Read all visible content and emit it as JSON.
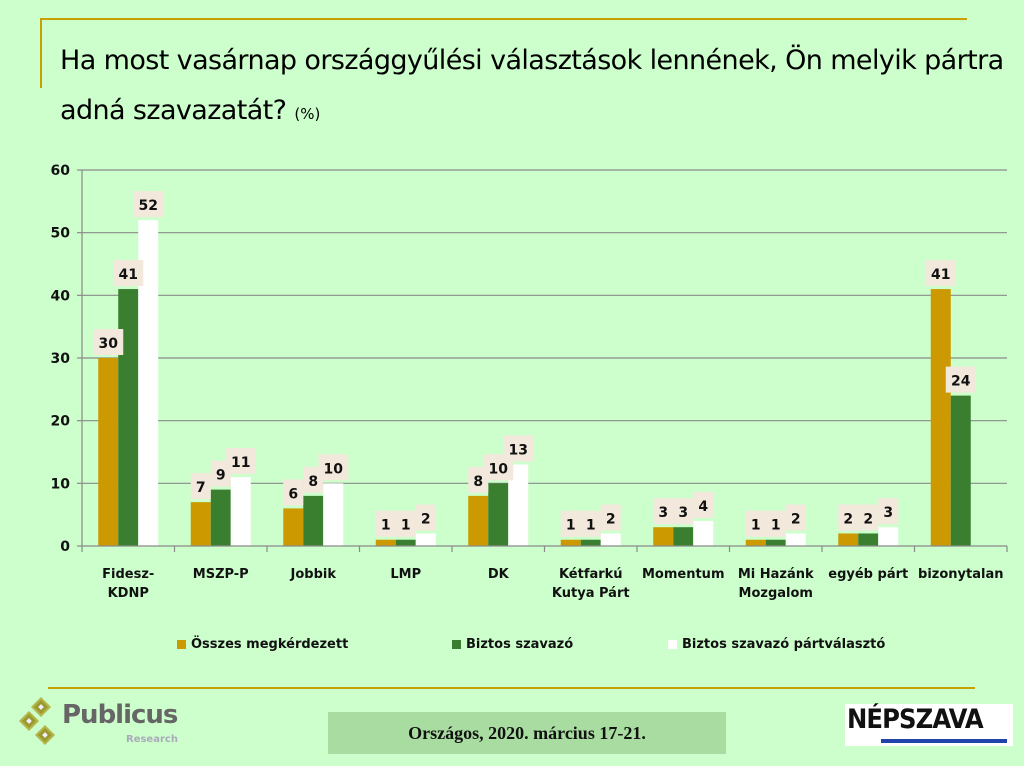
{
  "title": {
    "main": "Ha most vasárnap országgyűlési választások lennének, Ön melyik pártra adná szavazatát?",
    "unit": "(%)"
  },
  "chart_data": {
    "type": "bar",
    "title": "Ha most vasárnap országgyűlési választások lennének, Ön melyik pártra adná szavazatát? (%)",
    "xlabel": "",
    "ylabel": "",
    "ylim": [
      0,
      60
    ],
    "yticks": [
      0,
      10,
      20,
      30,
      40,
      50,
      60
    ],
    "grid": true,
    "legend_position": "bottom",
    "categories": [
      [
        "Fidesz-",
        "KDNP"
      ],
      [
        "MSZP-P"
      ],
      [
        "Jobbik"
      ],
      [
        "LMP"
      ],
      [
        "DK"
      ],
      [
        "Kétfarkú",
        "Kutya Párt"
      ],
      [
        "Momentum"
      ],
      [
        "Mi Hazánk",
        "Mozgalom"
      ],
      [
        "egyéb párt"
      ],
      [
        "bizonytalan"
      ]
    ],
    "series": [
      {
        "name": "Összes megkérdezett",
        "color": "#cc9900",
        "values": [
          30,
          7,
          6,
          1,
          8,
          1,
          3,
          1,
          2,
          41
        ]
      },
      {
        "name": "Biztos szavazó",
        "color": "#3a7f30",
        "values": [
          41,
          9,
          8,
          1,
          10,
          1,
          3,
          1,
          2,
          24
        ]
      },
      {
        "name": "Biztos szavazó pártválasztó",
        "color": "#ffffff",
        "values": [
          52,
          11,
          10,
          2,
          13,
          2,
          4,
          2,
          3,
          null
        ]
      }
    ]
  },
  "footer": {
    "survey_label": "Országos, 2020. március 17-21.",
    "publicus_name": "Publicus",
    "publicus_sub": "Research",
    "nepszava_name": "NÉPSZAVA"
  },
  "colors": {
    "background": "#ccffcc",
    "accent_rule": "#c8a000",
    "label_box": "#f2e8dc",
    "grid": "#8a8a8a"
  }
}
